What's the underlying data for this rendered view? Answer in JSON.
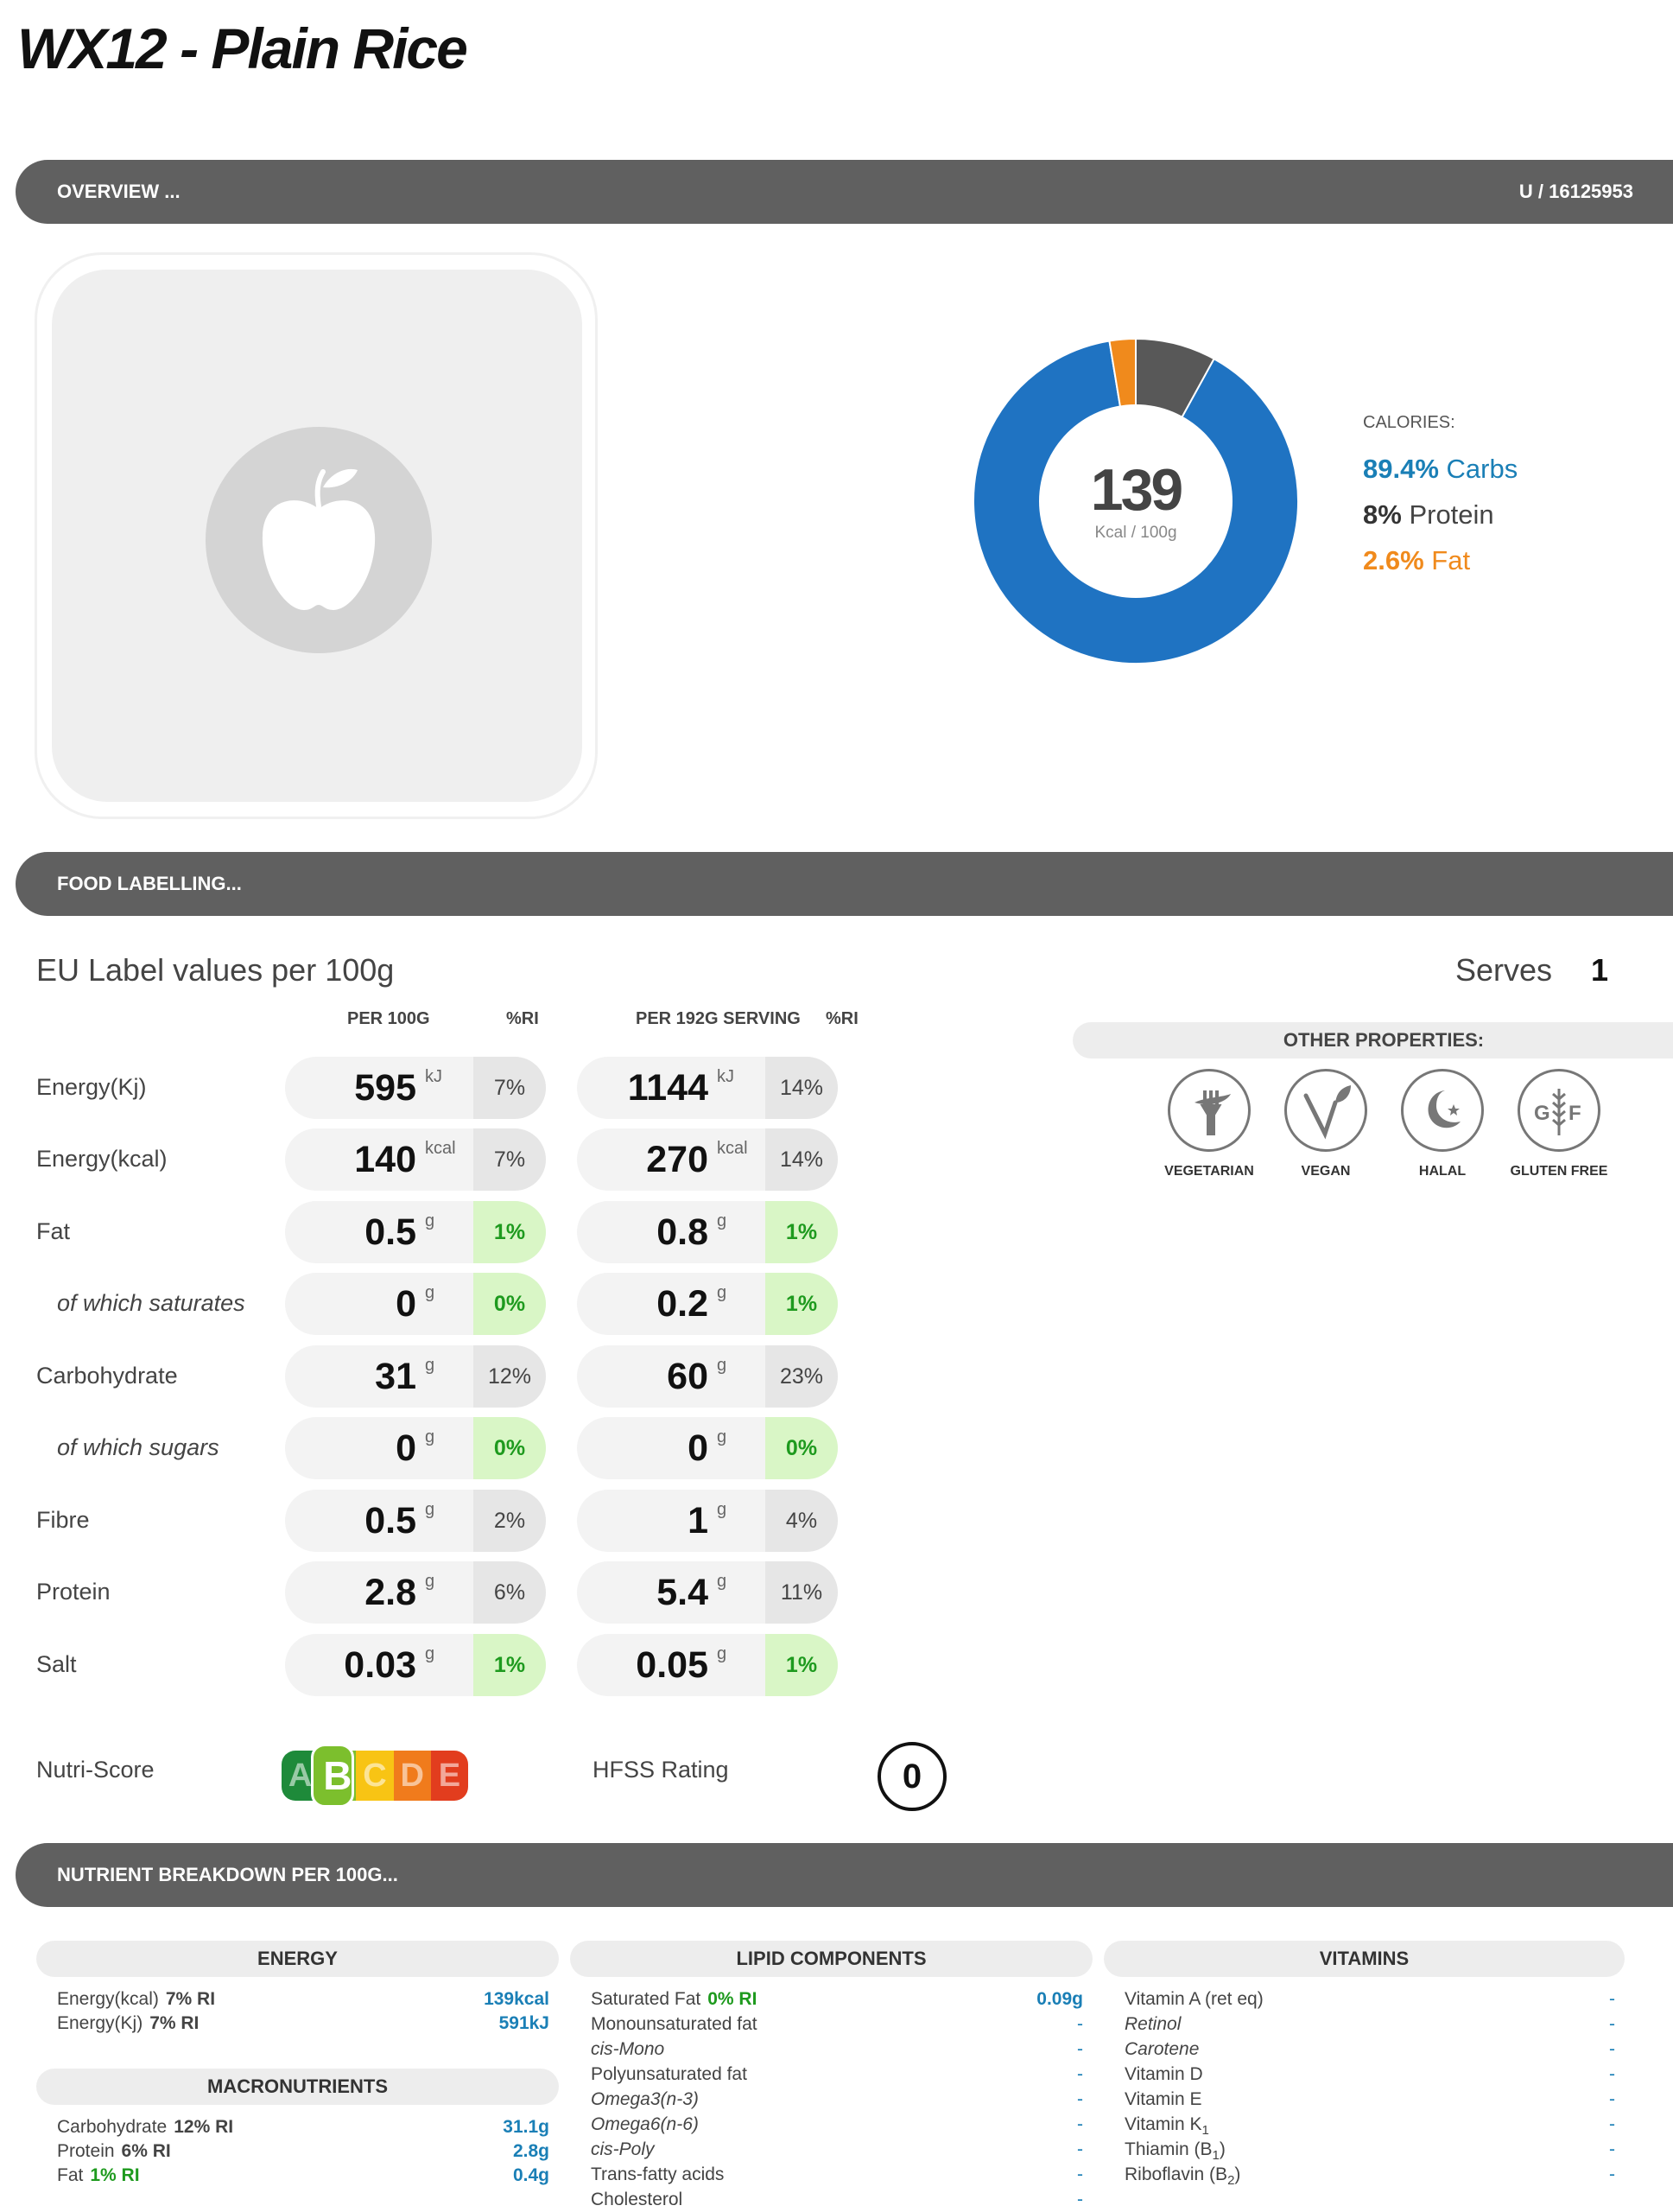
{
  "page_title": "WX12 - Plain Rice",
  "overview": {
    "label": "OVERVIEW ...",
    "code": "U / 16125953"
  },
  "calories": {
    "value": "139",
    "unit": "Kcal / 100g",
    "label": "CALORIES:",
    "carbs_pct": "89.4%",
    "carbs_label": "Carbs",
    "protein_pct": "8%",
    "protein_label": "Protein",
    "fat_pct": "2.6%",
    "fat_label": "Fat",
    "colors": {
      "carbs": "#1f73c2",
      "protein": "#585858",
      "fat": "#f08a1c"
    }
  },
  "food_labelling": {
    "label": "FOOD LABELLING..."
  },
  "eu": {
    "heading": "EU Label values per 100g",
    "serves_label": "Serves",
    "serves_value": "1",
    "col_per100": "PER 100G",
    "col_ri": "%RI",
    "col_serving": "PER 192G SERVING",
    "col_ri2": "%RI",
    "rows": [
      {
        "label": "Energy(Kj)",
        "sub": false,
        "v100": "595",
        "u": "kJ",
        "ri100": "7%",
        "g100": false,
        "vs": "1144",
        "ris": "14%",
        "gs": false
      },
      {
        "label": "Energy(kcal)",
        "sub": false,
        "v100": "140",
        "u": "kcal",
        "ri100": "7%",
        "g100": false,
        "vs": "270",
        "ris": "14%",
        "gs": false
      },
      {
        "label": "Fat",
        "sub": false,
        "v100": "0.5",
        "u": "g",
        "ri100": "1%",
        "g100": true,
        "vs": "0.8",
        "ris": "1%",
        "gs": true
      },
      {
        "label": "of which saturates",
        "sub": true,
        "v100": "0",
        "u": "g",
        "ri100": "0%",
        "g100": true,
        "vs": "0.2",
        "ris": "1%",
        "gs": true
      },
      {
        "label": "Carbohydrate",
        "sub": false,
        "v100": "31",
        "u": "g",
        "ri100": "12%",
        "g100": false,
        "vs": "60",
        "ris": "23%",
        "gs": false
      },
      {
        "label": "of which sugars",
        "sub": true,
        "v100": "0",
        "u": "g",
        "ri100": "0%",
        "g100": true,
        "vs": "0",
        "ris": "0%",
        "gs": true
      },
      {
        "label": "Fibre",
        "sub": false,
        "v100": "0.5",
        "u": "g",
        "ri100": "2%",
        "g100": false,
        "vs": "1",
        "ris": "4%",
        "gs": false
      },
      {
        "label": "Protein",
        "sub": false,
        "v100": "2.8",
        "u": "g",
        "ri100": "6%",
        "g100": false,
        "vs": "5.4",
        "ris": "11%",
        "gs": false
      },
      {
        "label": "Salt",
        "sub": false,
        "v100": "0.03",
        "u": "g",
        "ri100": "1%",
        "g100": true,
        "vs": "0.05",
        "ris": "1%",
        "gs": true
      }
    ]
  },
  "other_properties": {
    "label": "OTHER PROPERTIES:",
    "items": [
      {
        "label": "VEGETARIAN",
        "icon": "vegetarian-icon"
      },
      {
        "label": "VEGAN",
        "icon": "vegan-icon"
      },
      {
        "label": "HALAL",
        "icon": "halal-icon"
      },
      {
        "label": "GLUTEN FREE",
        "icon": "gluten-free-icon"
      }
    ]
  },
  "nutri_score": {
    "label": "Nutri-Score",
    "letters": [
      "A",
      "B",
      "C",
      "D",
      "E"
    ],
    "selected": "B"
  },
  "hfss": {
    "label": "HFSS Rating",
    "value": "0"
  },
  "breakdown": {
    "label": "NUTRIENT BREAKDOWN PER 100G...",
    "energy": {
      "title": "ENERGY",
      "rows": [
        {
          "label": "Energy(kcal)",
          "ri": "7% RI",
          "value": "139kcal"
        },
        {
          "label": "Energy(Kj)",
          "ri": "7% RI",
          "value": "591kJ"
        }
      ]
    },
    "macros": {
      "title": "MACRONUTRIENTS",
      "rows": [
        {
          "label": "Carbohydrate",
          "ri": "12% RI",
          "value": "31.1g"
        },
        {
          "label": "Protein",
          "ri": "6% RI",
          "value": "2.8g"
        },
        {
          "label": "Fat",
          "ri": "1% RI",
          "value": "0.4g"
        }
      ]
    },
    "lipids": {
      "title": "LIPID COMPONENTS",
      "rows": [
        {
          "label": "Saturated Fat",
          "ri": "0% RI",
          "value": "0.09g"
        },
        {
          "label": "Monounsaturated fat",
          "value": "-"
        },
        {
          "label": "cis-Mono",
          "value": "-"
        },
        {
          "label": "Polyunsaturated fat",
          "value": "-"
        },
        {
          "label": "Omega3(n-3)",
          "value": "-"
        },
        {
          "label": "Omega6(n-6)",
          "value": "-"
        },
        {
          "label": "cis-Poly",
          "value": "-"
        },
        {
          "label": "Trans-fatty acids",
          "value": "-"
        },
        {
          "label": "Cholesterol",
          "value": "-"
        }
      ]
    },
    "vitamins": {
      "title": "VITAMINS",
      "rows": [
        {
          "label": "Vitamin A (ret eq)",
          "value": "-"
        },
        {
          "label": "Retinol",
          "value": "-"
        },
        {
          "label": "Carotene",
          "value": "-"
        },
        {
          "label": "Vitamin D",
          "value": "-"
        },
        {
          "label": "Vitamin E",
          "value": "-"
        },
        {
          "label": "Vitamin K",
          "sub": "1",
          "value": "-"
        },
        {
          "label": "Thiamin (B",
          "sub": "1",
          "close": ")",
          "value": "-"
        },
        {
          "label": "Riboflavin (B",
          "sub": "2",
          "close": ")",
          "value": "-"
        }
      ]
    }
  }
}
